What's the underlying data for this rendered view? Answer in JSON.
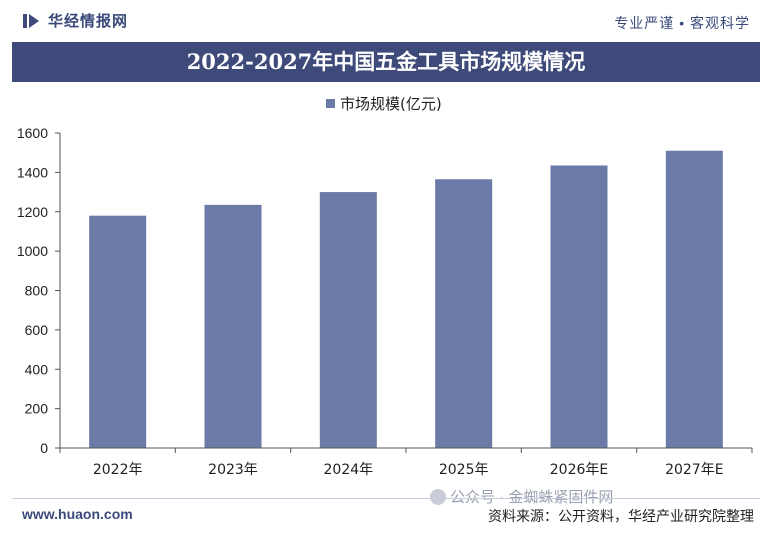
{
  "header": {
    "brand": "华经情报网",
    "tagline": "专业严谨 • 客观科学"
  },
  "chart_data": {
    "type": "bar",
    "title": "2022-2027年中国五金工具市场规模情况",
    "categories": [
      "2022年",
      "2023年",
      "2024年",
      "2025年",
      "2026年E",
      "2027年E"
    ],
    "series": [
      {
        "name": "市场规模(亿元)",
        "values": [
          1180,
          1235,
          1300,
          1365,
          1435,
          1510
        ],
        "color": "#6b7aa6"
      }
    ],
    "ylim": [
      0,
      1600
    ],
    "yticks": [
      0,
      200,
      400,
      600,
      800,
      1000,
      1200,
      1400,
      1600
    ],
    "legend_position": "top-center",
    "grid": false
  },
  "footer": {
    "website": "www.huaon.com",
    "source": "资料来源：公开资料，华经产业研究院整理",
    "watermark": "公众号 · 金蜘蛛紧固件网"
  },
  "colors": {
    "brand": "#3d4a7a",
    "bar": "#6b7aa6"
  }
}
